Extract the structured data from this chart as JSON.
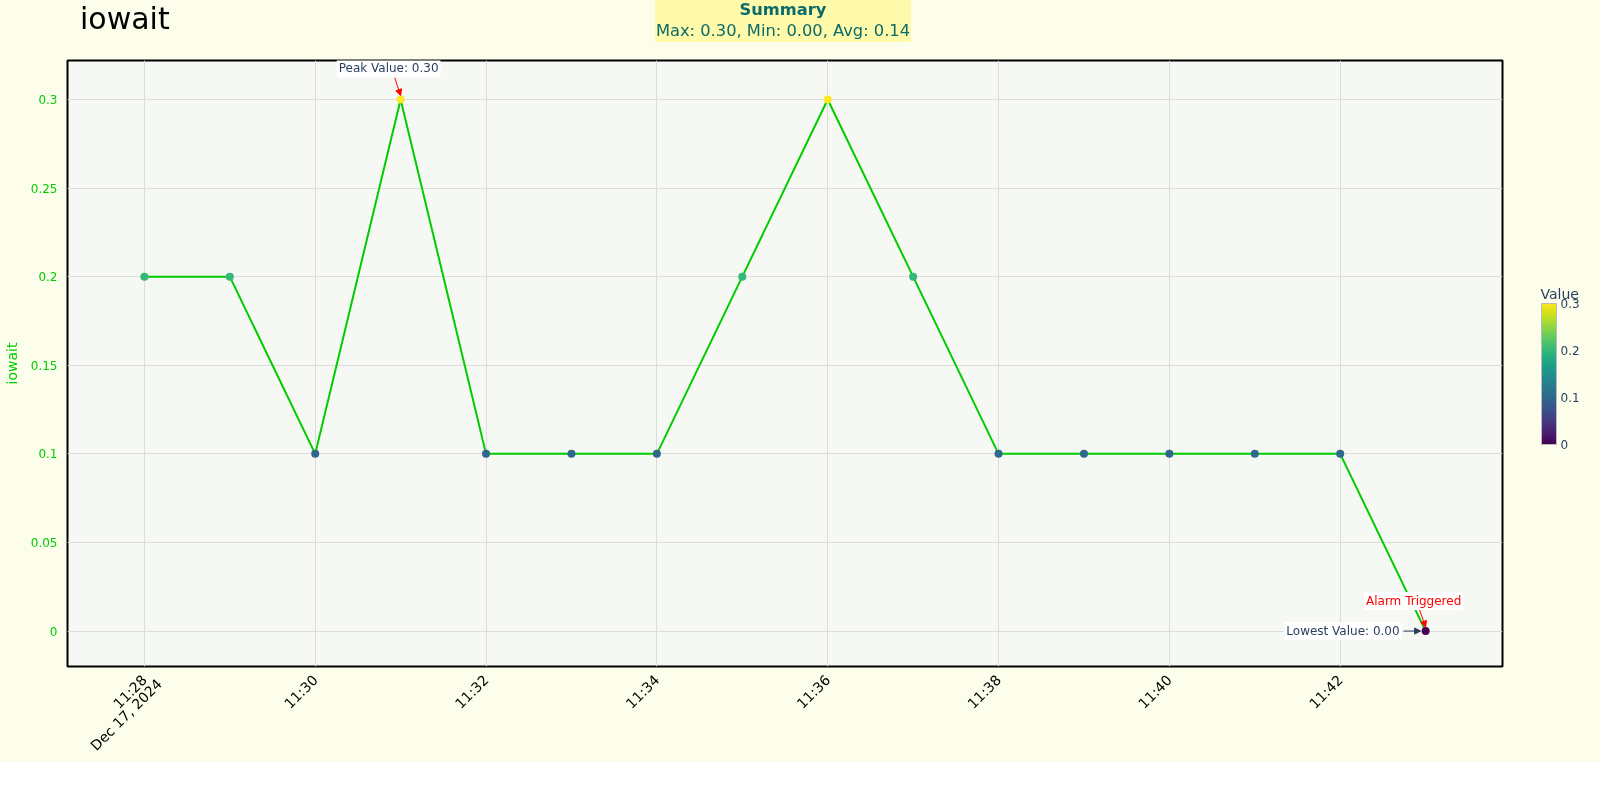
{
  "chart_data": {
    "type": "line",
    "title": "iowait",
    "ylabel": "iowait",
    "clabel": "Value",
    "x": [
      "2024-12-17T11:28",
      "2024-12-17T11:29",
      "2024-12-17T11:30",
      "2024-12-17T11:31",
      "2024-12-17T11:32",
      "2024-12-17T11:33",
      "2024-12-17T11:34",
      "2024-12-17T11:35",
      "2024-12-17T11:36",
      "2024-12-17T11:37",
      "2024-12-17T11:38",
      "2024-12-17T11:39",
      "2024-12-17T11:40",
      "2024-12-17T11:41",
      "2024-12-17T11:42",
      "2024-12-17T11:43"
    ],
    "series": [
      {
        "color": "#00cc00",
        "values": [
          0.2,
          0.2,
          0.1,
          0.3,
          0.1,
          0.1,
          0.1,
          0.2,
          0.3,
          0.2,
          0.1,
          0.1,
          0.1,
          0.1,
          0.1,
          0
        ]
      }
    ],
    "marker": "circle",
    "grid": true,
    "xlim": [
      "2024-12-17T11:27:06",
      "2024-12-17T11:43:54"
    ],
    "xticks": [
      {
        "value": "2024-12-17T11:28",
        "label": "11:28"
      },
      {
        "value": "2024-12-17T11:30",
        "label": "11:30"
      },
      {
        "value": "2024-12-17T11:32",
        "label": "11:32"
      },
      {
        "value": "2024-12-17T11:34",
        "label": "11:34"
      },
      {
        "value": "2024-12-17T11:36",
        "label": "11:36"
      },
      {
        "value": "2024-12-17T11:38",
        "label": "11:38"
      },
      {
        "value": "2024-12-17T11:40",
        "label": "11:40"
      },
      {
        "value": "2024-12-17T11:42",
        "label": "11:42"
      }
    ],
    "ylim": [
      -0.02,
      0.322
    ],
    "yticks": [
      0,
      0.05,
      0.1,
      0.15,
      0.2,
      0.25,
      0.3
    ],
    "clim": [
      0,
      0.3
    ],
    "cticks": [
      0,
      0.1,
      0.2,
      0.3
    ],
    "annotations": [
      "Summary",
      "Max: 0.30, Min: 0.00, Avg: 0.14",
      "Dec 17, 2024",
      {
        "text": "Peak Value: 0.30",
        "x": "2024-12-17T11:31",
        "y": 0.3
      },
      {
        "text": "Lowest Value: 0.00",
        "x": "2024-12-17T11:43",
        "y": 0
      },
      {
        "text": "Alarm Triggered",
        "x": "2024-12-17T11:43",
        "y": 0
      }
    ]
  }
}
